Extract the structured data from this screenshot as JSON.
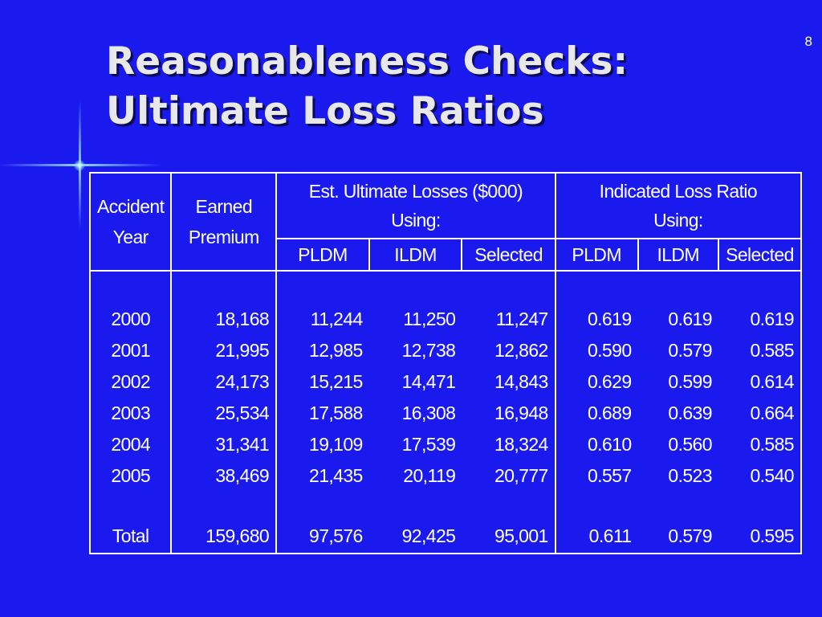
{
  "page_number": "8",
  "title": {
    "line1": "Reasonableness Checks:",
    "line2": "Ultimate Loss Ratios"
  },
  "colors": {
    "background": "#1a1aee",
    "title_text": "#e8e8e8",
    "table_text": "#ffffff"
  },
  "table": {
    "headers": {
      "accident_year": {
        "line1": "Accident",
        "line2": "Year"
      },
      "earned_premium": {
        "line1": "Earned",
        "line2": "Premium"
      },
      "losses_group": {
        "line1": "Est. Ultimate Losses ($000)",
        "line2": "Using:"
      },
      "ratio_group": {
        "line1": "Indicated Loss Ratio",
        "line2": "Using:"
      },
      "sub": [
        "PLDM",
        "ILDM",
        "Selected",
        "PLDM",
        "ILDM",
        "Selected"
      ]
    },
    "rows": [
      {
        "year": "2000",
        "premium": "18,168",
        "loss_pldm": "11,244",
        "loss_ildm": "11,250",
        "loss_selected": "11,247",
        "ratio_pldm": "0.619",
        "ratio_ildm": "0.619",
        "ratio_selected": "0.619"
      },
      {
        "year": "2001",
        "premium": "21,995",
        "loss_pldm": "12,985",
        "loss_ildm": "12,738",
        "loss_selected": "12,862",
        "ratio_pldm": "0.590",
        "ratio_ildm": "0.579",
        "ratio_selected": "0.585"
      },
      {
        "year": "2002",
        "premium": "24,173",
        "loss_pldm": "15,215",
        "loss_ildm": "14,471",
        "loss_selected": "14,843",
        "ratio_pldm": "0.629",
        "ratio_ildm": "0.599",
        "ratio_selected": "0.614"
      },
      {
        "year": "2003",
        "premium": "25,534",
        "loss_pldm": "17,588",
        "loss_ildm": "16,308",
        "loss_selected": "16,948",
        "ratio_pldm": "0.689",
        "ratio_ildm": "0.639",
        "ratio_selected": "0.664"
      },
      {
        "year": "2004",
        "premium": "31,341",
        "loss_pldm": "19,109",
        "loss_ildm": "17,539",
        "loss_selected": "18,324",
        "ratio_pldm": "0.610",
        "ratio_ildm": "0.560",
        "ratio_selected": "0.585"
      },
      {
        "year": "2005",
        "premium": "38,469",
        "loss_pldm": "21,435",
        "loss_ildm": "20,119",
        "loss_selected": "20,777",
        "ratio_pldm": "0.557",
        "ratio_ildm": "0.523",
        "ratio_selected": "0.540"
      }
    ],
    "total": {
      "year": "Total",
      "premium": "159,680",
      "loss_pldm": "97,576",
      "loss_ildm": "92,425",
      "loss_selected": "95,001",
      "ratio_pldm": "0.611",
      "ratio_ildm": "0.579",
      "ratio_selected": "0.595"
    }
  }
}
